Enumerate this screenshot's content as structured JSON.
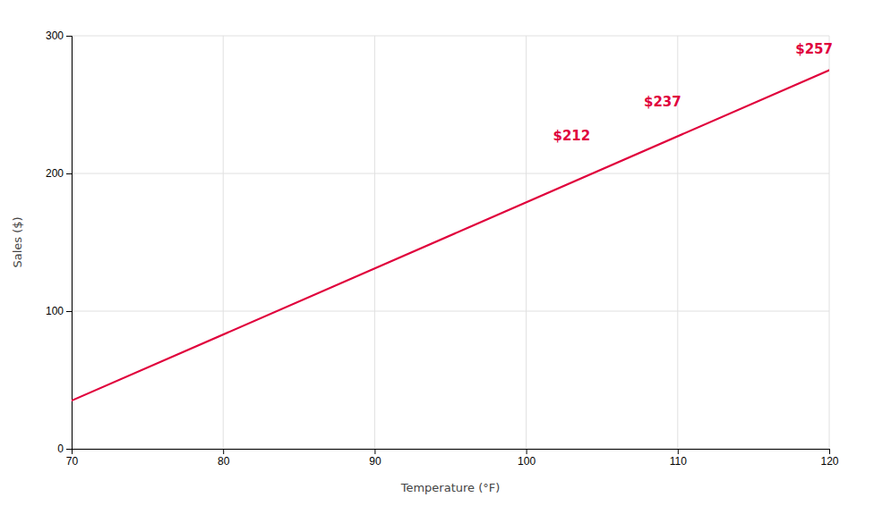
{
  "chart_data": {
    "type": "line",
    "x": [
      70,
      120
    ],
    "values": [
      35,
      275
    ],
    "color": "#e0003c",
    "xlabel": "Temperature (°F)",
    "ylabel": "Sales ($)",
    "xlim": [
      70,
      120
    ],
    "ylim": [
      0,
      300
    ],
    "xticks": [
      70,
      80,
      90,
      100,
      110,
      120
    ],
    "yticks": [
      0,
      100,
      200,
      300
    ],
    "grid": true,
    "annotations": [
      {
        "text": "$212",
        "x": 103,
        "y": 222
      },
      {
        "text": "$237",
        "x": 109,
        "y": 247
      },
      {
        "text": "$257",
        "x": 119,
        "y": 285
      }
    ]
  }
}
